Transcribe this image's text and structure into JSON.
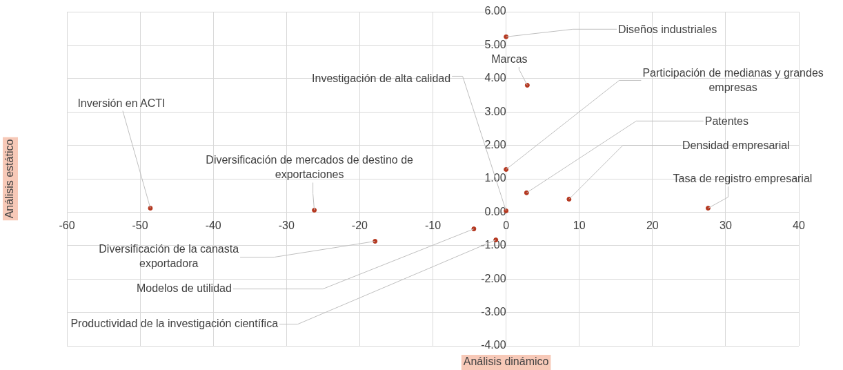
{
  "chart_data": {
    "type": "scatter",
    "xlabel": "Análisis dinámico",
    "ylabel": "Análisis estático",
    "x": [
      -48.6,
      -26.2,
      -17.9,
      -4.4,
      -1.4,
      0,
      0,
      2.9,
      0,
      2.8,
      8.6,
      27.6
    ],
    "series": [
      {
        "color": "#b5371f",
        "values": [
          0.12,
          0.06,
          -0.87,
          -0.5,
          -0.83,
          0.04,
          5.25,
          3.8,
          1.28,
          0.58,
          0.39,
          0.12
        ]
      }
    ],
    "xlim": [
      -60,
      40
    ],
    "xticks": [
      -60,
      -50,
      -40,
      -30,
      -20,
      -10,
      0,
      10,
      20,
      30,
      40
    ],
    "ylim": [
      -4,
      6
    ],
    "yticks": [
      {
        "value": -4,
        "label": "-4.00"
      },
      {
        "value": -3,
        "label": "-3.00"
      },
      {
        "value": -2,
        "label": "-2.00"
      },
      {
        "value": -1,
        "label": "-1.00"
      },
      {
        "value": 0,
        "label": "0.00"
      },
      {
        "value": 1,
        "label": "1.00"
      },
      {
        "value": 2,
        "label": "2.00"
      },
      {
        "value": 3,
        "label": "3.00"
      },
      {
        "value": 4,
        "label": "4.00"
      },
      {
        "value": 5,
        "label": "5.00"
      },
      {
        "value": 6,
        "label": "6.00"
      }
    ],
    "grid": true,
    "legend": false,
    "marker": "circle",
    "annotations": [
      {
        "text": "Inversión en ACTI",
        "x": -48.6,
        "y": 0.12
      },
      {
        "text": "Diversificación de mercados de destino de exportaciones",
        "x": -26.2,
        "y": 0.06
      },
      {
        "text": "Diversificación de la canasta exportadora",
        "x": -17.9,
        "y": -0.87
      },
      {
        "text": "Modelos de utilidad",
        "x": -4.4,
        "y": -0.5
      },
      {
        "text": "Productividad de la investigación científica",
        "x": -1.4,
        "y": -0.83
      },
      {
        "text": "Investigación de alta calidad",
        "x": 0,
        "y": 0.04
      },
      {
        "text": "Diseños industriales",
        "x": 0,
        "y": 5.25
      },
      {
        "text": "Marcas",
        "x": 2.9,
        "y": 3.8
      },
      {
        "text": "Participación de medianas y grandes empresas",
        "x": 0,
        "y": 1.28
      },
      {
        "text": "Patentes",
        "x": 2.8,
        "y": 0.58
      },
      {
        "text": "Densidad empresarial",
        "x": 8.6,
        "y": 0.39
      },
      {
        "text": "Tasa de registro empresarial",
        "x": 27.6,
        "y": 0.12
      }
    ]
  }
}
